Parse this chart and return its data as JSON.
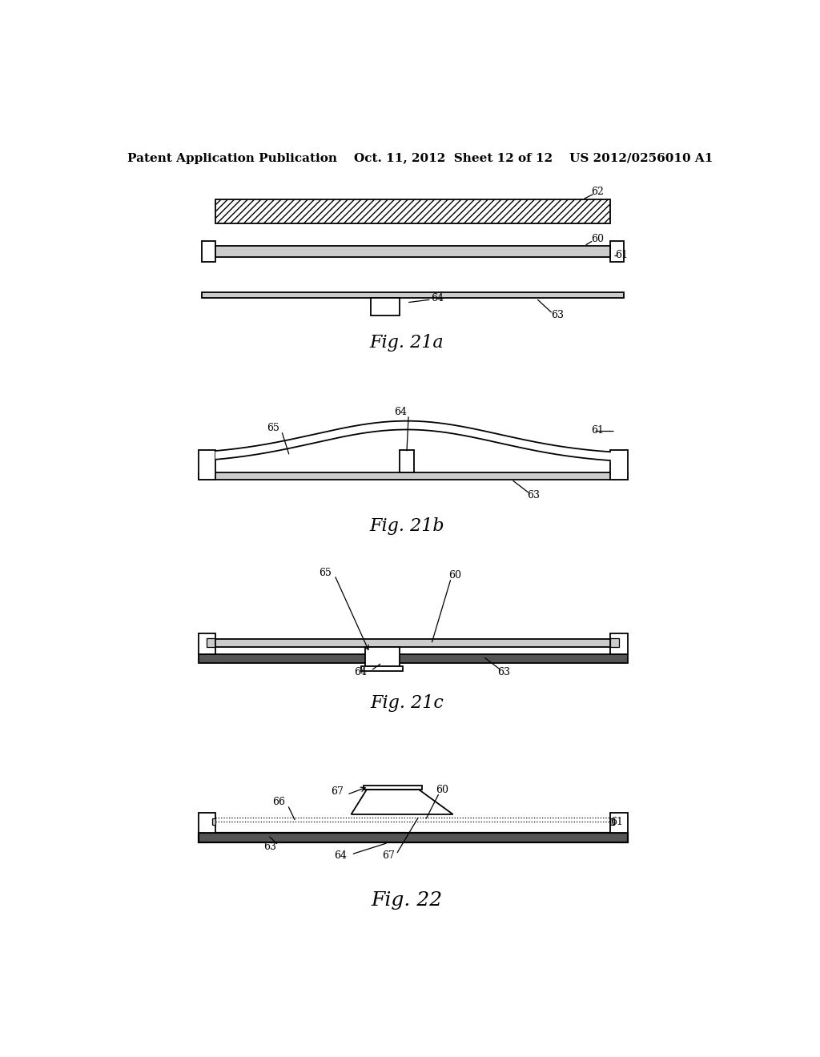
{
  "bg_color": "#ffffff",
  "line_color": "#000000",
  "header": "Patent Application Publication    Oct. 11, 2012  Sheet 12 of 12    US 2012/0256010 A1",
  "fig21a_caption": "Fig. 21a",
  "fig21b_caption": "Fig. 21b",
  "fig21c_caption": "Fig. 21c",
  "fig22_caption": "Fig. 22",
  "gray_fill": "#aaaaaa",
  "light_gray": "#cccccc",
  "dark_gray": "#555555"
}
